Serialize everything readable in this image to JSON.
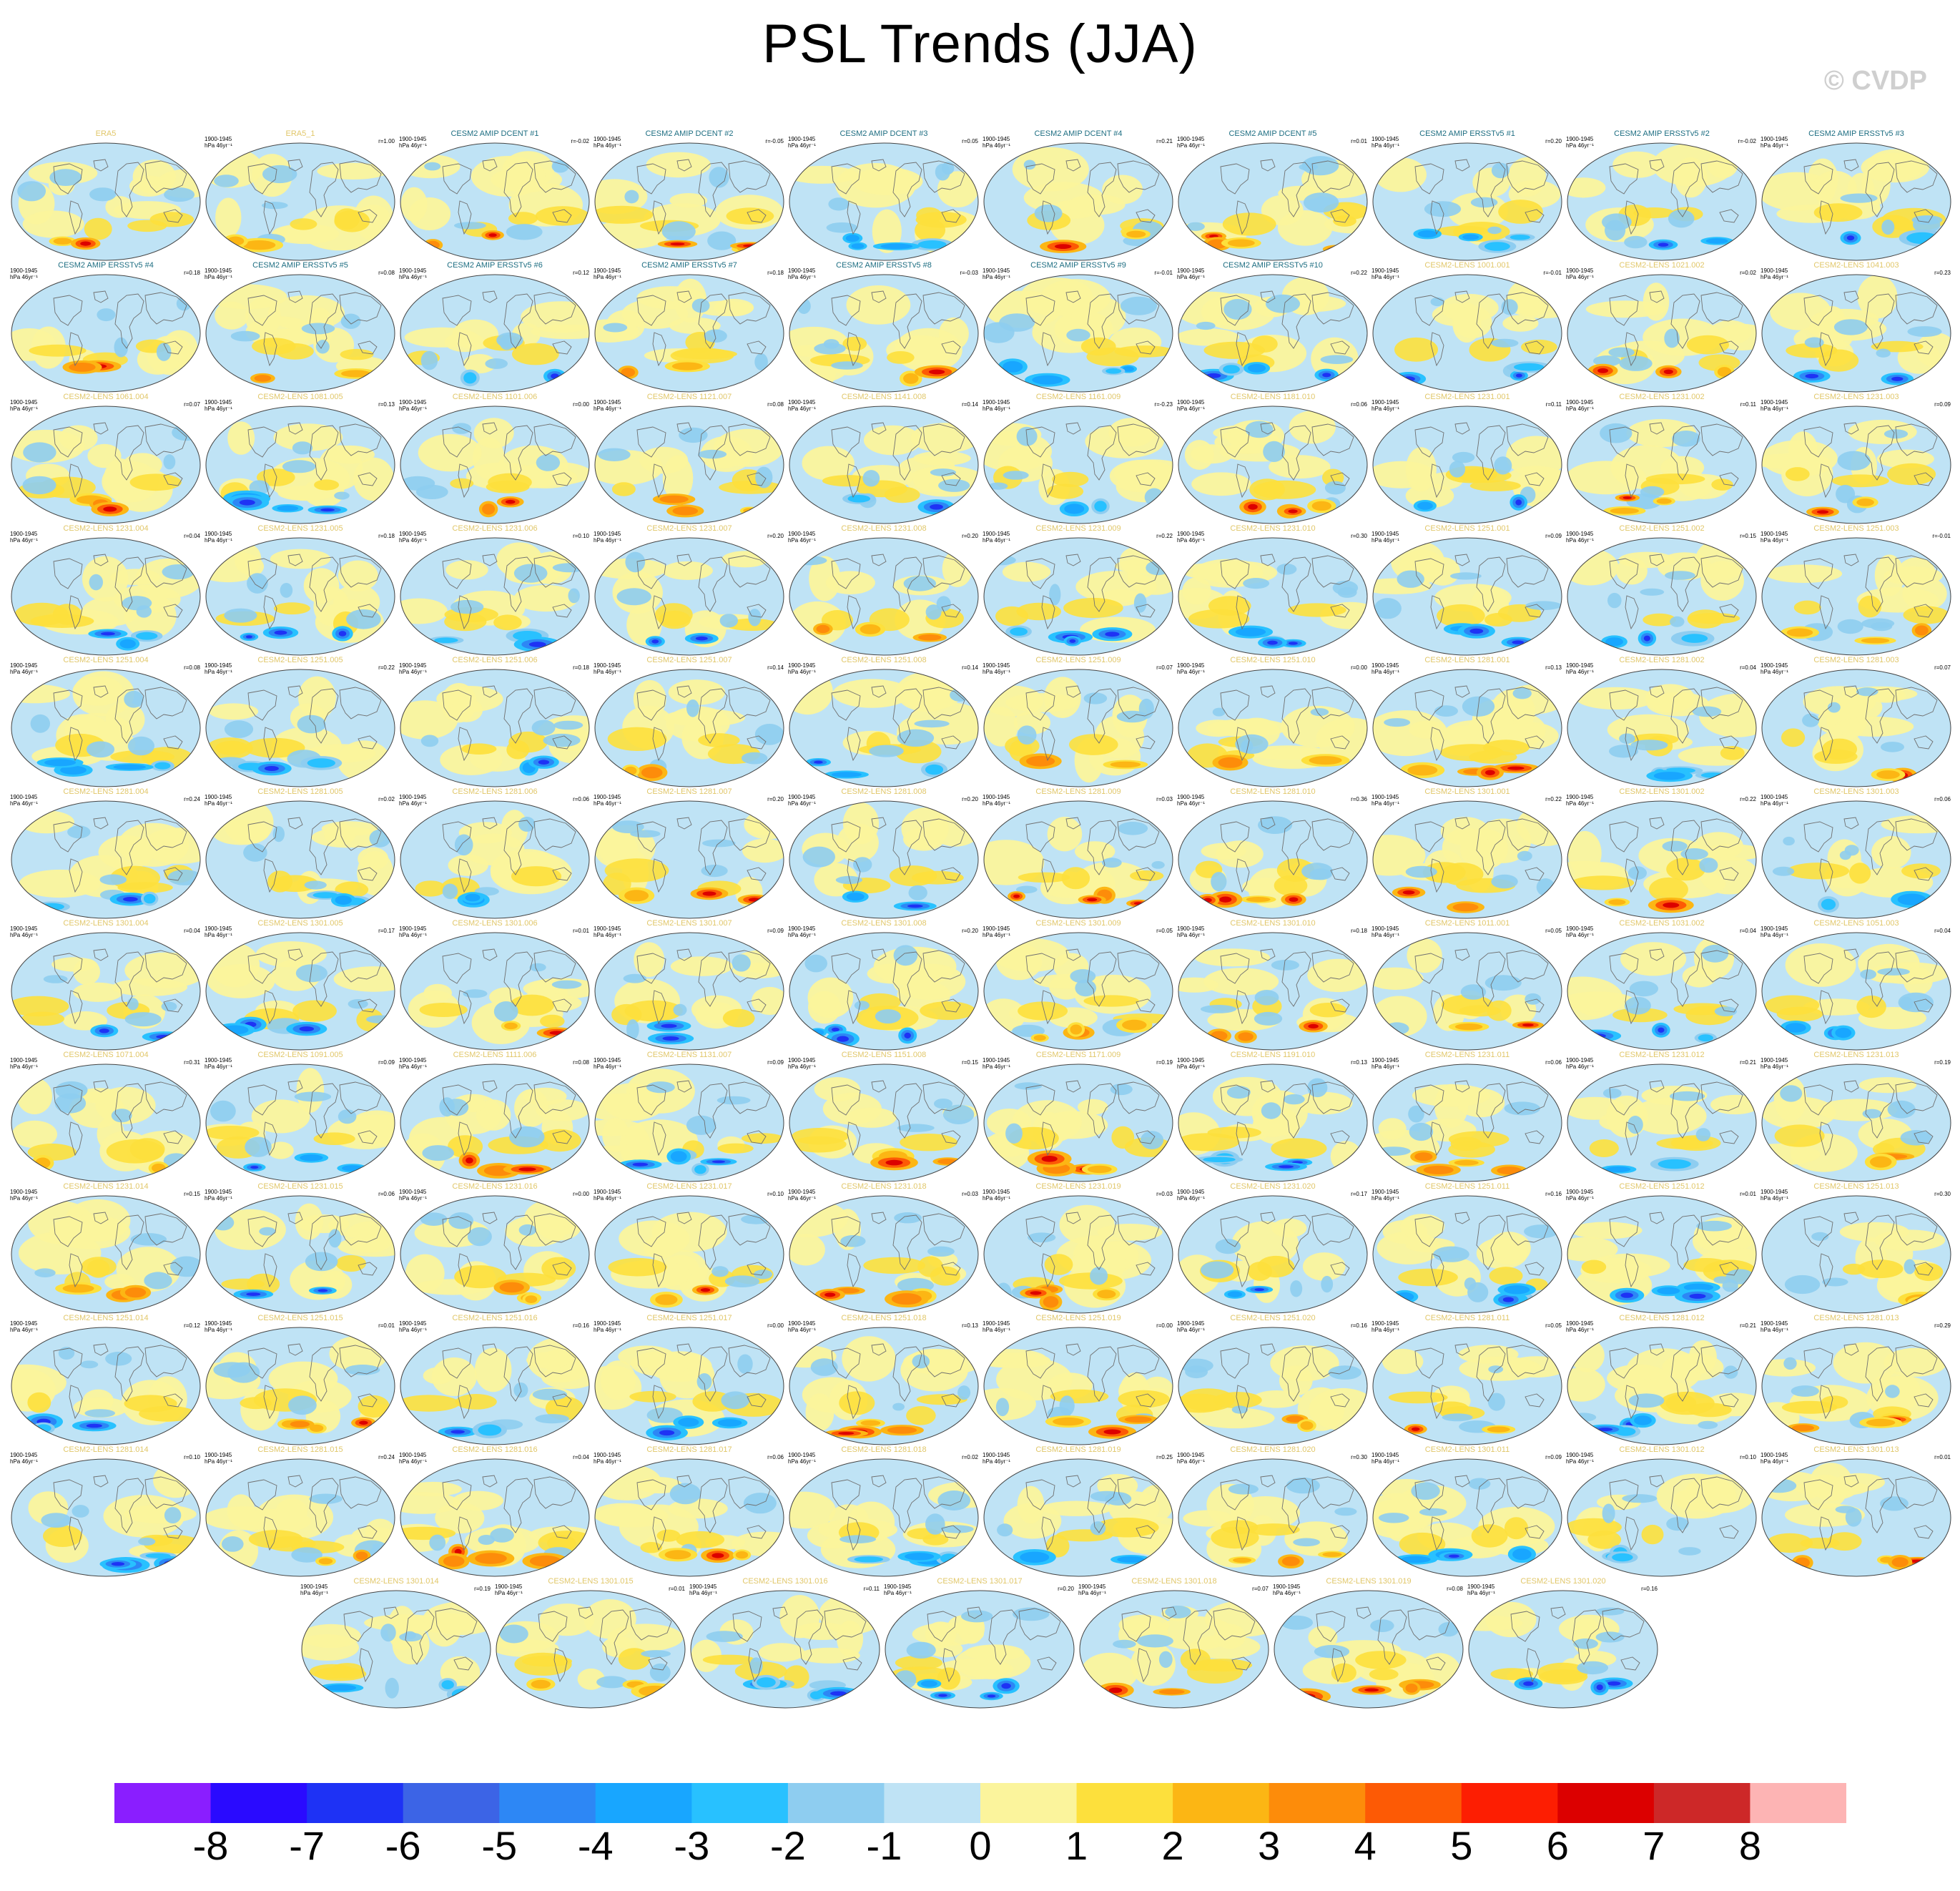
{
  "title": "PSL Trends (JJA)",
  "copyright": "© CVDP",
  "period": "1900-1945",
  "units": "hPa 46yr⁻¹",
  "colorbar": {
    "labels": [
      "-8",
      "-7",
      "-6",
      "-5",
      "-4",
      "-3",
      "-2",
      "-1",
      "0",
      "1",
      "2",
      "3",
      "4",
      "5",
      "6",
      "7",
      "8"
    ],
    "colors": [
      "#8a1eff",
      "#2a0aff",
      "#1e32f5",
      "#3c64e6",
      "#2d87f5",
      "#18a6ff",
      "#28c1ff",
      "#8ecdf0",
      "#bfe3f5",
      "#fbf49c",
      "#fde03c",
      "#fcb614",
      "#fd8c0a",
      "#fd5a05",
      "#fd1e02",
      "#dc0000",
      "#cd2828",
      "#fdb4b4"
    ]
  },
  "colors": {
    "obs_title": "#e1c76a",
    "model_title": "#1e6e82",
    "lens_title": "#e1c76a",
    "ocean": "#bfe3f5",
    "coast": "#707070"
  },
  "panels": [
    {
      "name": "ERA5",
      "corr": ""
    },
    {
      "name": "ERA5_1",
      "corr": "r=1.00"
    },
    {
      "name": "CESM2 AMIP DCENT #1",
      "corr": "r=-0.02"
    },
    {
      "name": "CESM2 AMIP DCENT #2",
      "corr": "r=-0.05"
    },
    {
      "name": "CESM2 AMIP DCENT #3",
      "corr": "r=0.05"
    },
    {
      "name": "CESM2 AMIP DCENT #4",
      "corr": "r=0.21"
    },
    {
      "name": "CESM2 AMIP DCENT #5",
      "corr": "r=0.01"
    },
    {
      "name": "CESM2 AMIP ERSSTv5 #1",
      "corr": "r=0.20"
    },
    {
      "name": "CESM2 AMIP ERSSTv5 #2",
      "corr": "r=-0.02"
    },
    {
      "name": "CESM2 AMIP ERSSTv5 #3",
      "corr": ""
    },
    {
      "name": "CESM2 AMIP ERSSTv5 #4",
      "corr": "r=0.18"
    },
    {
      "name": "CESM2 AMIP ERSSTv5 #5",
      "corr": "r=0.08"
    },
    {
      "name": "CESM2 AMIP ERSSTv5 #6",
      "corr": "r=0.12"
    },
    {
      "name": "CESM2 AMIP ERSSTv5 #7",
      "corr": "r=0.18"
    },
    {
      "name": "CESM2 AMIP ERSSTv5 #8",
      "corr": "r=-0.03"
    },
    {
      "name": "CESM2 AMIP ERSSTv5 #9",
      "corr": "r=-0.01"
    },
    {
      "name": "CESM2 AMIP ERSSTv5 #10",
      "corr": "r=0.22"
    },
    {
      "name": "CESM2-LENS 1001.001",
      "corr": "r=-0.01"
    },
    {
      "name": "CESM2-LENS 1021.002",
      "corr": "r=0.02"
    },
    {
      "name": "CESM2-LENS 1041.003",
      "corr": "r=0.23"
    },
    {
      "name": "CESM2-LENS 1061.004",
      "corr": "r=0.07"
    },
    {
      "name": "CESM2-LENS 1081.005",
      "corr": "r=0.13"
    },
    {
      "name": "CESM2-LENS 1101.006",
      "corr": "r=0.00"
    },
    {
      "name": "CESM2-LENS 1121.007",
      "corr": "r=0.08"
    },
    {
      "name": "CESM2-LENS 1141.008",
      "corr": "r=0.14"
    },
    {
      "name": "CESM2-LENS 1161.009",
      "corr": "r=-0.23"
    },
    {
      "name": "CESM2-LENS 1181.010",
      "corr": "r=0.06"
    },
    {
      "name": "CESM2-LENS 1231.001",
      "corr": "r=0.11"
    },
    {
      "name": "CESM2-LENS 1231.002",
      "corr": "r=0.11"
    },
    {
      "name": "CESM2-LENS 1231.003",
      "corr": "r=0.09"
    },
    {
      "name": "CESM2-LENS 1231.004",
      "corr": "r=0.04"
    },
    {
      "name": "CESM2-LENS 1231.005",
      "corr": "r=0.18"
    },
    {
      "name": "CESM2-LENS 1231.006",
      "corr": "r=0.10"
    },
    {
      "name": "CESM2-LENS 1231.007",
      "corr": "r=0.20"
    },
    {
      "name": "CESM2-LENS 1231.008",
      "corr": "r=0.20"
    },
    {
      "name": "CESM2-LENS 1231.009",
      "corr": "r=0.22"
    },
    {
      "name": "CESM2-LENS 1231.010",
      "corr": "r=0.30"
    },
    {
      "name": "CESM2-LENS 1251.001",
      "corr": "r=0.09"
    },
    {
      "name": "CESM2-LENS 1251.002",
      "corr": "r=0.15"
    },
    {
      "name": "CESM2-LENS 1251.003",
      "corr": "r=-0.01"
    },
    {
      "name": "CESM2-LENS 1251.004",
      "corr": "r=0.08"
    },
    {
      "name": "CESM2-LENS 1251.005",
      "corr": "r=0.22"
    },
    {
      "name": "CESM2-LENS 1251.006",
      "corr": "r=0.18"
    },
    {
      "name": "CESM2-LENS 1251.007",
      "corr": "r=0.14"
    },
    {
      "name": "CESM2-LENS 1251.008",
      "corr": "r=0.14"
    },
    {
      "name": "CESM2-LENS 1251.009",
      "corr": "r=0.07"
    },
    {
      "name": "CESM2-LENS 1251.010",
      "corr": "r=0.00"
    },
    {
      "name": "CESM2-LENS 1281.001",
      "corr": "r=0.13"
    },
    {
      "name": "CESM2-LENS 1281.002",
      "corr": "r=0.04"
    },
    {
      "name": "CESM2-LENS 1281.003",
      "corr": "r=0.07"
    },
    {
      "name": "CESM2-LENS 1281.004",
      "corr": "r=0.24"
    },
    {
      "name": "CESM2-LENS 1281.005",
      "corr": "r=0.02"
    },
    {
      "name": "CESM2-LENS 1281.006",
      "corr": "r=0.06"
    },
    {
      "name": "CESM2-LENS 1281.007",
      "corr": "r=0.20"
    },
    {
      "name": "CESM2-LENS 1281.008",
      "corr": "r=0.20"
    },
    {
      "name": "CESM2-LENS 1281.009",
      "corr": "r=0.03"
    },
    {
      "name": "CESM2-LENS 1281.010",
      "corr": "r=0.36"
    },
    {
      "name": "CESM2-LENS 1301.001",
      "corr": "r=0.22"
    },
    {
      "name": "CESM2-LENS 1301.002",
      "corr": "r=0.22"
    },
    {
      "name": "CESM2-LENS 1301.003",
      "corr": "r=0.06"
    },
    {
      "name": "CESM2-LENS 1301.004",
      "corr": "r=0.04"
    },
    {
      "name": "CESM2-LENS 1301.005",
      "corr": "r=0.17"
    },
    {
      "name": "CESM2-LENS 1301.006",
      "corr": "r=0.01"
    },
    {
      "name": "CESM2-LENS 1301.007",
      "corr": "r=0.09"
    },
    {
      "name": "CESM2-LENS 1301.008",
      "corr": "r=0.20"
    },
    {
      "name": "CESM2-LENS 1301.009",
      "corr": "r=0.05"
    },
    {
      "name": "CESM2-LENS 1301.010",
      "corr": "r=0.18"
    },
    {
      "name": "CESM2-LENS 1011.001",
      "corr": "r=0.05"
    },
    {
      "name": "CESM2-LENS 1031.002",
      "corr": "r=0.04"
    },
    {
      "name": "CESM2-LENS 1051.003",
      "corr": "r=0.04"
    },
    {
      "name": "CESM2-LENS 1071.004",
      "corr": "r=0.31"
    },
    {
      "name": "CESM2-LENS 1091.005",
      "corr": "r=0.09"
    },
    {
      "name": "CESM2-LENS 1111.006",
      "corr": "r=0.08"
    },
    {
      "name": "CESM2-LENS 1131.007",
      "corr": "r=0.09"
    },
    {
      "name": "CESM2-LENS 1151.008",
      "corr": "r=0.15"
    },
    {
      "name": "CESM2-LENS 1171.009",
      "corr": "r=0.19"
    },
    {
      "name": "CESM2-LENS 1191.010",
      "corr": "r=0.13"
    },
    {
      "name": "CESM2-LENS 1231.011",
      "corr": "r=0.06"
    },
    {
      "name": "CESM2-LENS 1231.012",
      "corr": "r=0.21"
    },
    {
      "name": "CESM2-LENS 1231.013",
      "corr": "r=0.19"
    },
    {
      "name": "CESM2-LENS 1231.014",
      "corr": "r=0.15"
    },
    {
      "name": "CESM2-LENS 1231.015",
      "corr": "r=0.06"
    },
    {
      "name": "CESM2-LENS 1231.016",
      "corr": "r=0.00"
    },
    {
      "name": "CESM2-LENS 1231.017",
      "corr": "r=0.10"
    },
    {
      "name": "CESM2-LENS 1231.018",
      "corr": "r=0.03"
    },
    {
      "name": "CESM2-LENS 1231.019",
      "corr": "r=0.03"
    },
    {
      "name": "CESM2-LENS 1231.020",
      "corr": "r=0.17"
    },
    {
      "name": "CESM2-LENS 1251.011",
      "corr": "r=0.16"
    },
    {
      "name": "CESM2-LENS 1251.012",
      "corr": "r=0.01"
    },
    {
      "name": "CESM2-LENS 1251.013",
      "corr": "r=0.30"
    },
    {
      "name": "CESM2-LENS 1251.014",
      "corr": "r=0.12"
    },
    {
      "name": "CESM2-LENS 1251.015",
      "corr": "r=0.01"
    },
    {
      "name": "CESM2-LENS 1251.016",
      "corr": "r=0.16"
    },
    {
      "name": "CESM2-LENS 1251.017",
      "corr": "r=0.00"
    },
    {
      "name": "CESM2-LENS 1251.018",
      "corr": "r=0.13"
    },
    {
      "name": "CESM2-LENS 1251.019",
      "corr": "r=0.00"
    },
    {
      "name": "CESM2-LENS 1251.020",
      "corr": "r=0.16"
    },
    {
      "name": "CESM2-LENS 1281.011",
      "corr": "r=0.05"
    },
    {
      "name": "CESM2-LENS 1281.012",
      "corr": "r=0.21"
    },
    {
      "name": "CESM2-LENS 1281.013",
      "corr": "r=0.29"
    },
    {
      "name": "CESM2-LENS 1281.014",
      "corr": "r=0.10"
    },
    {
      "name": "CESM2-LENS 1281.015",
      "corr": "r=0.24"
    },
    {
      "name": "CESM2-LENS 1281.016",
      "corr": "r=0.04"
    },
    {
      "name": "CESM2-LENS 1281.017",
      "corr": "r=0.06"
    },
    {
      "name": "CESM2-LENS 1281.018",
      "corr": "r=0.02"
    },
    {
      "name": "CESM2-LENS 1281.019",
      "corr": "r=0.25"
    },
    {
      "name": "CESM2-LENS 1281.020",
      "corr": "r=0.30"
    },
    {
      "name": "CESM2-LENS 1301.011",
      "corr": "r=0.09"
    },
    {
      "name": "CESM2-LENS 1301.012",
      "corr": "r=0.10"
    },
    {
      "name": "CESM2-LENS 1301.013",
      "corr": "r=0.01"
    },
    {
      "name": "CESM2-LENS 1301.014",
      "corr": "r=0.19"
    },
    {
      "name": "CESM2-LENS 1301.015",
      "corr": "r=0.01"
    },
    {
      "name": "CESM2-LENS 1301.016",
      "corr": "r=0.11"
    },
    {
      "name": "CESM2-LENS 1301.017",
      "corr": "r=0.20"
    },
    {
      "name": "CESM2-LENS 1301.018",
      "corr": "r=0.07"
    },
    {
      "name": "CESM2-LENS 1301.019",
      "corr": "r=0.08"
    },
    {
      "name": "CESM2-LENS 1301.020",
      "corr": "r=0.16"
    }
  ]
}
